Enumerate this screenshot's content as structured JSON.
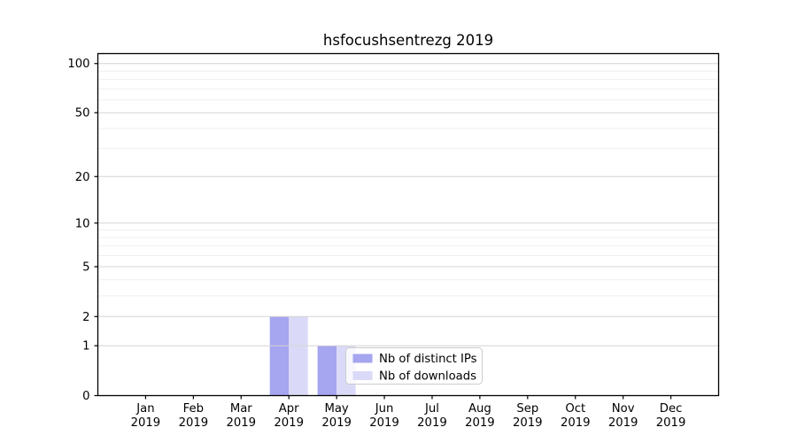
{
  "chart_data": {
    "type": "bar",
    "title": "hsfocushsentrezg 2019",
    "categories": [
      "Jan",
      "Feb",
      "Mar",
      "Apr",
      "May",
      "Jun",
      "Jul",
      "Aug",
      "Sep",
      "Oct",
      "Nov",
      "Dec"
    ],
    "tick_year": "2019",
    "series": [
      {
        "name": "Nb of distinct IPs",
        "color": "#a5a5f0",
        "values": [
          0,
          0,
          0,
          2,
          1,
          0,
          0,
          0,
          0,
          0,
          0,
          0
        ]
      },
      {
        "name": "Nb of downloads",
        "color": "#dadaf8",
        "values": [
          0,
          0,
          0,
          2,
          1,
          0,
          0,
          0,
          0,
          0,
          0,
          0
        ]
      }
    ],
    "yscale": "log1p",
    "ylim": [
      0,
      115
    ],
    "y_major_ticks": [
      0,
      1,
      2,
      5,
      10,
      20,
      50,
      100
    ],
    "y_minor_gridlines": [
      3,
      4,
      6,
      7,
      8,
      9,
      30,
      40,
      60,
      70,
      80,
      90
    ],
    "grid": true,
    "legend_position": "lower center-right, inside plot",
    "colors": {
      "bar_ips": "#a5a5f0",
      "bar_downloads": "#dadaf8",
      "grid_major": "#d4d4d4",
      "grid_minor": "#efefef",
      "axis": "#000000",
      "text": "#000000",
      "legend_border": "#cccccc",
      "legend_bg": "rgba(255,255,255,0.8)"
    }
  }
}
